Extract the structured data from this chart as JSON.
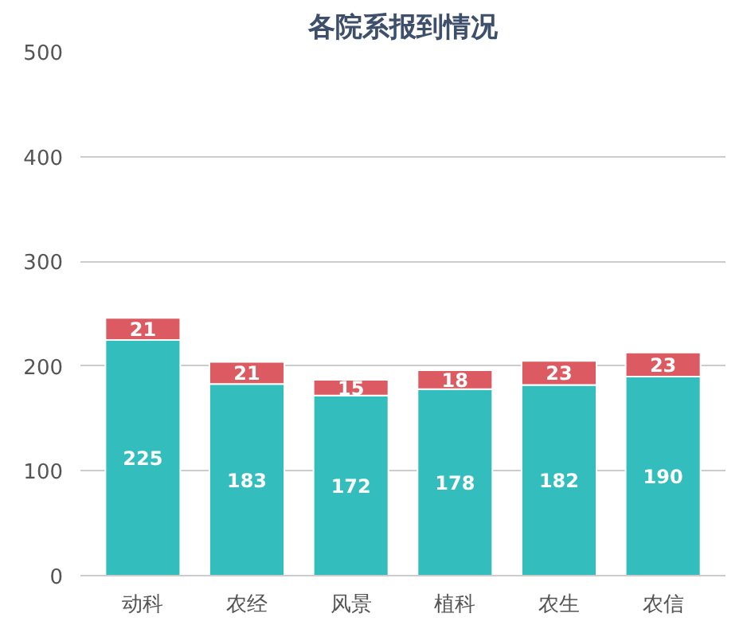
{
  "chart_data": {
    "type": "bar",
    "title": "各院系报到情况",
    "categories": [
      "动科",
      "农经",
      "风景",
      "植科",
      "农生",
      "农信"
    ],
    "stacked": true,
    "data_labels": true,
    "grid": "y",
    "series": [
      {
        "color": "#33bdbd",
        "values": [
          225,
          183,
          172,
          178,
          182,
          190
        ]
      },
      {
        "color": "#dc5a62",
        "values": [
          21,
          21,
          15,
          18,
          23,
          23
        ]
      }
    ],
    "ylim": [
      0,
      500
    ],
    "yticks": [
      0,
      100,
      200,
      300,
      400,
      500
    ]
  }
}
